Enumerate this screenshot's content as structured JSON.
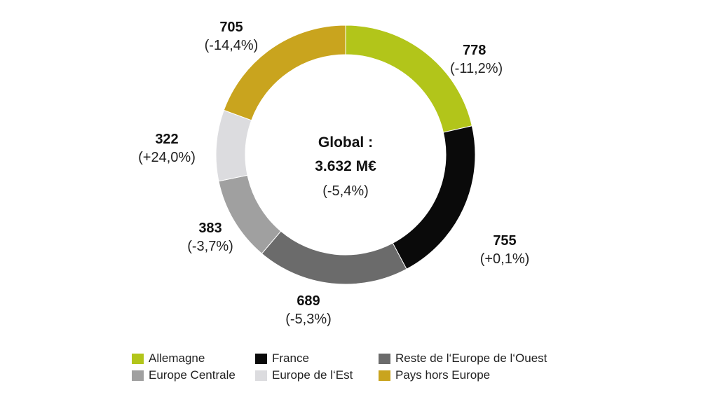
{
  "chart_data": {
    "type": "pie",
    "donut": true,
    "center": {
      "line1": "Global :",
      "line2": "3.632 M€",
      "line3": "(-5,4%)"
    },
    "slices": [
      {
        "name": "Allemagne",
        "value": 778,
        "change": "(-11,2%)",
        "color": "#b2c51a"
      },
      {
        "name": "France",
        "value": 755,
        "change": "(+0,1%)",
        "color": "#0a0a0a"
      },
      {
        "name": "Reste de l'Europe de l'Ouest",
        "value": 689,
        "change": "(-5,3%)",
        "color": "#6b6b6b"
      },
      {
        "name": "Europe Centrale",
        "value": 383,
        "change": "(-3,7%)",
        "color": "#a0a0a0"
      },
      {
        "name": "Europe de l'Est",
        "value": 322,
        "change": "(+24,0%)",
        "color": "#dcdcdf"
      },
      {
        "name": "Pays hors Europe",
        "value": 705,
        "change": "(-14,4%)",
        "color": "#c9a41e"
      }
    ],
    "legend": {
      "position": "bottom",
      "order": [
        "Allemagne",
        "France",
        "Reste de l'Europe de l'Ouest",
        "Europe Centrale",
        "Europe de l'Est",
        "Pays hors Europe"
      ],
      "labels": [
        "Allemagne",
        "France",
        "Reste de l‘Europe de l‘Ouest",
        "Europe Centrale",
        "Europe de l‘Est",
        "Pays hors Europe"
      ]
    }
  }
}
